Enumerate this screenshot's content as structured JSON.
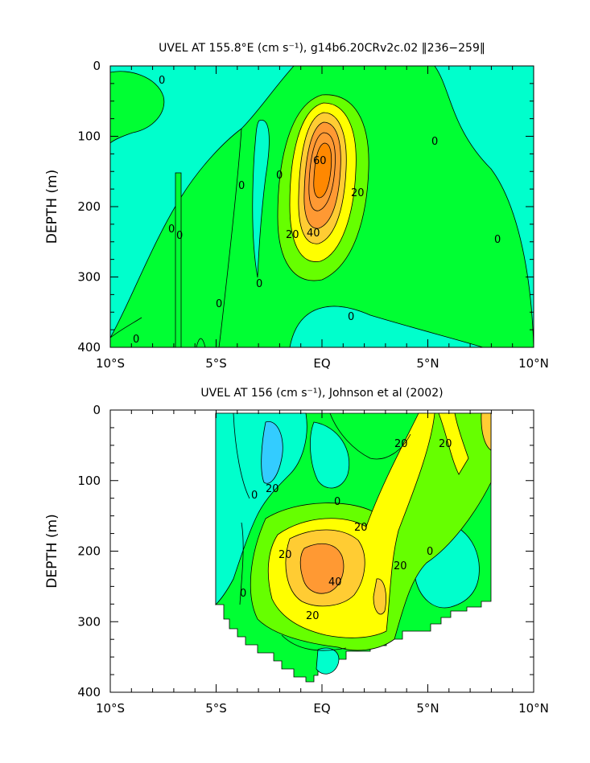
{
  "chart_data": [
    {
      "type": "contour",
      "title": "UVEL AT 155.8°E (cm s⁻¹), g14b6.20CRv2c.02 ‖236−259‖",
      "xlabel": "",
      "ylabel": "DEPTH (m)",
      "xlim": [
        -10,
        10
      ],
      "ylim": [
        400,
        0
      ],
      "x_ticks": [
        -10,
        -5,
        0,
        5,
        10
      ],
      "x_tick_labels": [
        "10°S",
        "5°S",
        "EQ",
        "5°N",
        "10°N"
      ],
      "y_ticks": [
        0,
        100,
        200,
        300,
        400
      ],
      "y_tick_labels": [
        "0",
        "100",
        "200",
        "300",
        "400"
      ],
      "contour_interval": 10,
      "levels": [
        0,
        10,
        20,
        30,
        40,
        50,
        60
      ],
      "contour_labels": [
        "0",
        "0",
        "0",
        "0",
        "0",
        "0",
        "0",
        "0",
        "0",
        "0",
        "60",
        "20",
        "40",
        "20",
        "0"
      ],
      "core": {
        "lat": 0,
        "depth": 170,
        "max": 60
      },
      "colors": {
        "neg": "#00ffcc",
        "0": "#00ff33",
        "10": "#66ff00",
        "20": "#ffff00",
        "30": "#ffcc33",
        "40": "#ff9933",
        "50": "#ff9933",
        "60": "#ff8800"
      }
    },
    {
      "type": "contour",
      "title": "UVEL AT 156 (cm s⁻¹), Johnson et al (2002)",
      "xlabel": "",
      "ylabel": "DEPTH (m)",
      "xlim": [
        -10,
        10
      ],
      "ylim": [
        400,
        0
      ],
      "x_ticks": [
        -10,
        -5,
        0,
        5,
        10
      ],
      "x_tick_labels": [
        "10°S",
        "5°S",
        "EQ",
        "5°N",
        "10°N"
      ],
      "y_ticks": [
        0,
        100,
        200,
        300,
        400
      ],
      "y_tick_labels": [
        "0",
        "100",
        "200",
        "300",
        "400"
      ],
      "data_extent_lat": [
        -5,
        8
      ],
      "contour_interval": 10,
      "levels": [
        0,
        10,
        20,
        30,
        40
      ],
      "contour_labels": [
        "20",
        "20",
        "20",
        "0",
        "20",
        "20",
        "20",
        "40",
        "20",
        "0",
        "0",
        "0"
      ],
      "core": {
        "lat": -0.5,
        "depth": 210,
        "max": 40
      },
      "colors": {
        "neg": "#00ffcc",
        "neg_strong": "#33ccff",
        "0": "#00ff33",
        "10": "#66ff00",
        "20": "#ffff00",
        "30": "#ffcc33",
        "40": "#ff9933"
      }
    }
  ]
}
